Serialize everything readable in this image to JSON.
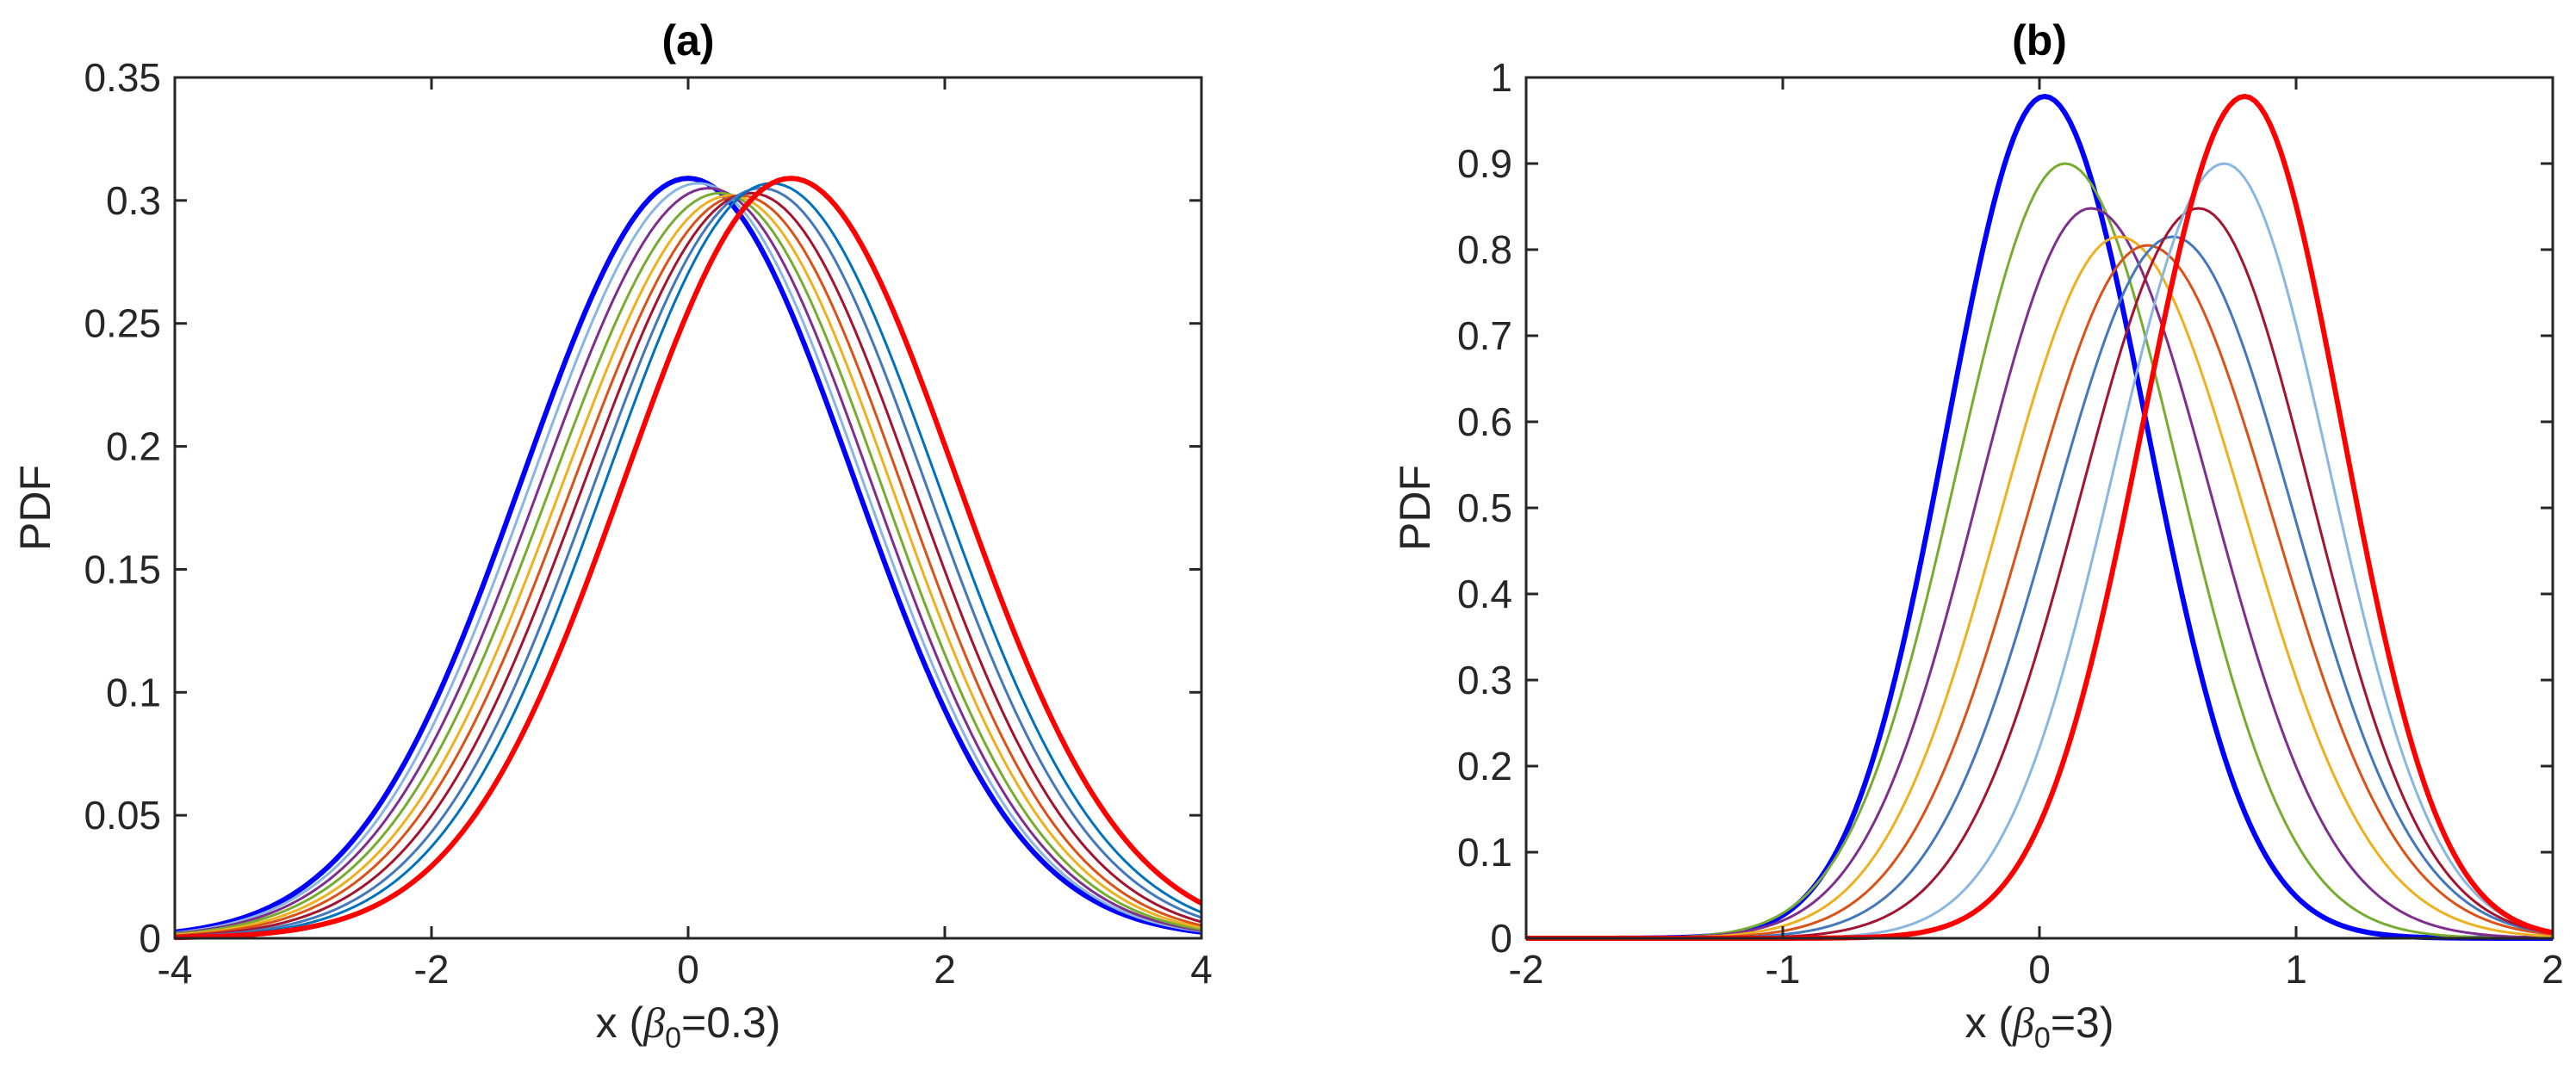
{
  "chart_data": [
    {
      "type": "line",
      "panel": "(a)",
      "title": "(a)",
      "xlabel_prefix": "x (",
      "xlabel_symbol": "β",
      "xlabel_subscript": "0",
      "xlabel_suffix": "=0.3)",
      "ylabel": "PDF",
      "xlim": [
        -4,
        4
      ],
      "ylim": [
        0,
        0.35
      ],
      "xticks": [
        -4,
        -2,
        0,
        2,
        4
      ],
      "xtick_labels": [
        "-4",
        "-2",
        "0",
        "2",
        "4"
      ],
      "yticks": [
        0,
        0.05,
        0.1,
        0.15,
        0.2,
        0.25,
        0.3,
        0.35
      ],
      "ytick_labels": [
        "0",
        "0.05",
        "0.1",
        "0.15",
        "0.2",
        "0.25",
        "0.3",
        "0.35"
      ],
      "x_sampling": {
        "start": -4,
        "end": 4,
        "step": 0.05
      },
      "series": [
        {
          "name": "s1",
          "color": "#0000FF",
          "width": 6,
          "mode": 0.0,
          "left_sd": 1.29,
          "right_sd": 1.29,
          "peak": 0.309
        },
        {
          "name": "s2",
          "color": "#8AB6E0",
          "width": 3,
          "mode": 0.08,
          "left_sd": 1.3,
          "right_sd": 1.28,
          "peak": 0.307
        },
        {
          "name": "s3",
          "color": "#7E2F8E",
          "width": 3,
          "mode": 0.16,
          "left_sd": 1.31,
          "right_sd": 1.27,
          "peak": 0.305
        },
        {
          "name": "s4",
          "color": "#77AC30",
          "width": 3,
          "mode": 0.25,
          "left_sd": 1.32,
          "right_sd": 1.26,
          "peak": 0.303
        },
        {
          "name": "s5",
          "color": "#EDB120",
          "width": 3,
          "mode": 0.33,
          "left_sd": 1.32,
          "right_sd": 1.26,
          "peak": 0.302
        },
        {
          "name": "s6",
          "color": "#D95319",
          "width": 3,
          "mode": 0.41,
          "left_sd": 1.32,
          "right_sd": 1.26,
          "peak": 0.302
        },
        {
          "name": "s7",
          "color": "#A2142F",
          "width": 3,
          "mode": 0.49,
          "left_sd": 1.31,
          "right_sd": 1.27,
          "peak": 0.303
        },
        {
          "name": "s8",
          "color": "#4477BB",
          "width": 3,
          "mode": 0.57,
          "left_sd": 1.3,
          "right_sd": 1.28,
          "peak": 0.305
        },
        {
          "name": "s9",
          "color": "#0072BD",
          "width": 3,
          "mode": 0.65,
          "left_sd": 1.29,
          "right_sd": 1.29,
          "peak": 0.307
        },
        {
          "name": "s10",
          "color": "#FF0000",
          "width": 6,
          "mode": 0.8,
          "left_sd": 1.29,
          "right_sd": 1.29,
          "peak": 0.309
        }
      ]
    },
    {
      "type": "line",
      "panel": "(b)",
      "title": "(b)",
      "xlabel_prefix": "x  (",
      "xlabel_symbol": "β",
      "xlabel_subscript": "0",
      "xlabel_suffix": "=3)",
      "ylabel": "PDF",
      "xlim": [
        -2,
        2
      ],
      "ylim": [
        0,
        1
      ],
      "xticks": [
        -2,
        -1,
        0,
        1,
        2
      ],
      "xtick_labels": [
        "-2",
        "-1",
        "0",
        "1",
        "2"
      ],
      "yticks": [
        0,
        0.1,
        0.2,
        0.3,
        0.4,
        0.5,
        0.6,
        0.7,
        0.8,
        0.9,
        1
      ],
      "ytick_labels": [
        "0",
        "0.1",
        "0.2",
        "0.3",
        "0.4",
        "0.5",
        "0.6",
        "0.7",
        "0.8",
        "0.9",
        "1"
      ],
      "x_sampling": {
        "start": -2,
        "end": 2,
        "step": 0.02
      },
      "series": [
        {
          "name": "s1",
          "color": "#0000FF",
          "width": 6,
          "mode": 0.02,
          "left_sd": 0.38,
          "right_sd": 0.4,
          "peak": 0.978
        },
        {
          "name": "s2",
          "color": "#77AC30",
          "width": 3,
          "mode": 0.1,
          "left_sd": 0.42,
          "right_sd": 0.44,
          "peak": 0.9
        },
        {
          "name": "s3",
          "color": "#7E2F8E",
          "width": 3,
          "mode": 0.2,
          "left_sd": 0.44,
          "right_sd": 0.47,
          "peak": 0.848
        },
        {
          "name": "s4",
          "color": "#EDB120",
          "width": 3,
          "mode": 0.31,
          "left_sd": 0.46,
          "right_sd": 0.49,
          "peak": 0.815
        },
        {
          "name": "s5",
          "color": "#D95319",
          "width": 3,
          "mode": 0.42,
          "left_sd": 0.47,
          "right_sd": 0.49,
          "peak": 0.805
        },
        {
          "name": "s6",
          "color": "#4477BB",
          "width": 3,
          "mode": 0.52,
          "left_sd": 0.47,
          "right_sd": 0.47,
          "peak": 0.815
        },
        {
          "name": "s7",
          "color": "#A2142F",
          "width": 3,
          "mode": 0.62,
          "left_sd": 0.46,
          "right_sd": 0.44,
          "peak": 0.848
        },
        {
          "name": "s8",
          "color": "#8AB6E0",
          "width": 3,
          "mode": 0.72,
          "left_sd": 0.43,
          "right_sd": 0.41,
          "peak": 0.9
        },
        {
          "name": "s9",
          "color": "#FF0000",
          "width": 6,
          "mode": 0.8,
          "left_sd": 0.4,
          "right_sd": 0.38,
          "peak": 0.978
        }
      ]
    }
  ]
}
